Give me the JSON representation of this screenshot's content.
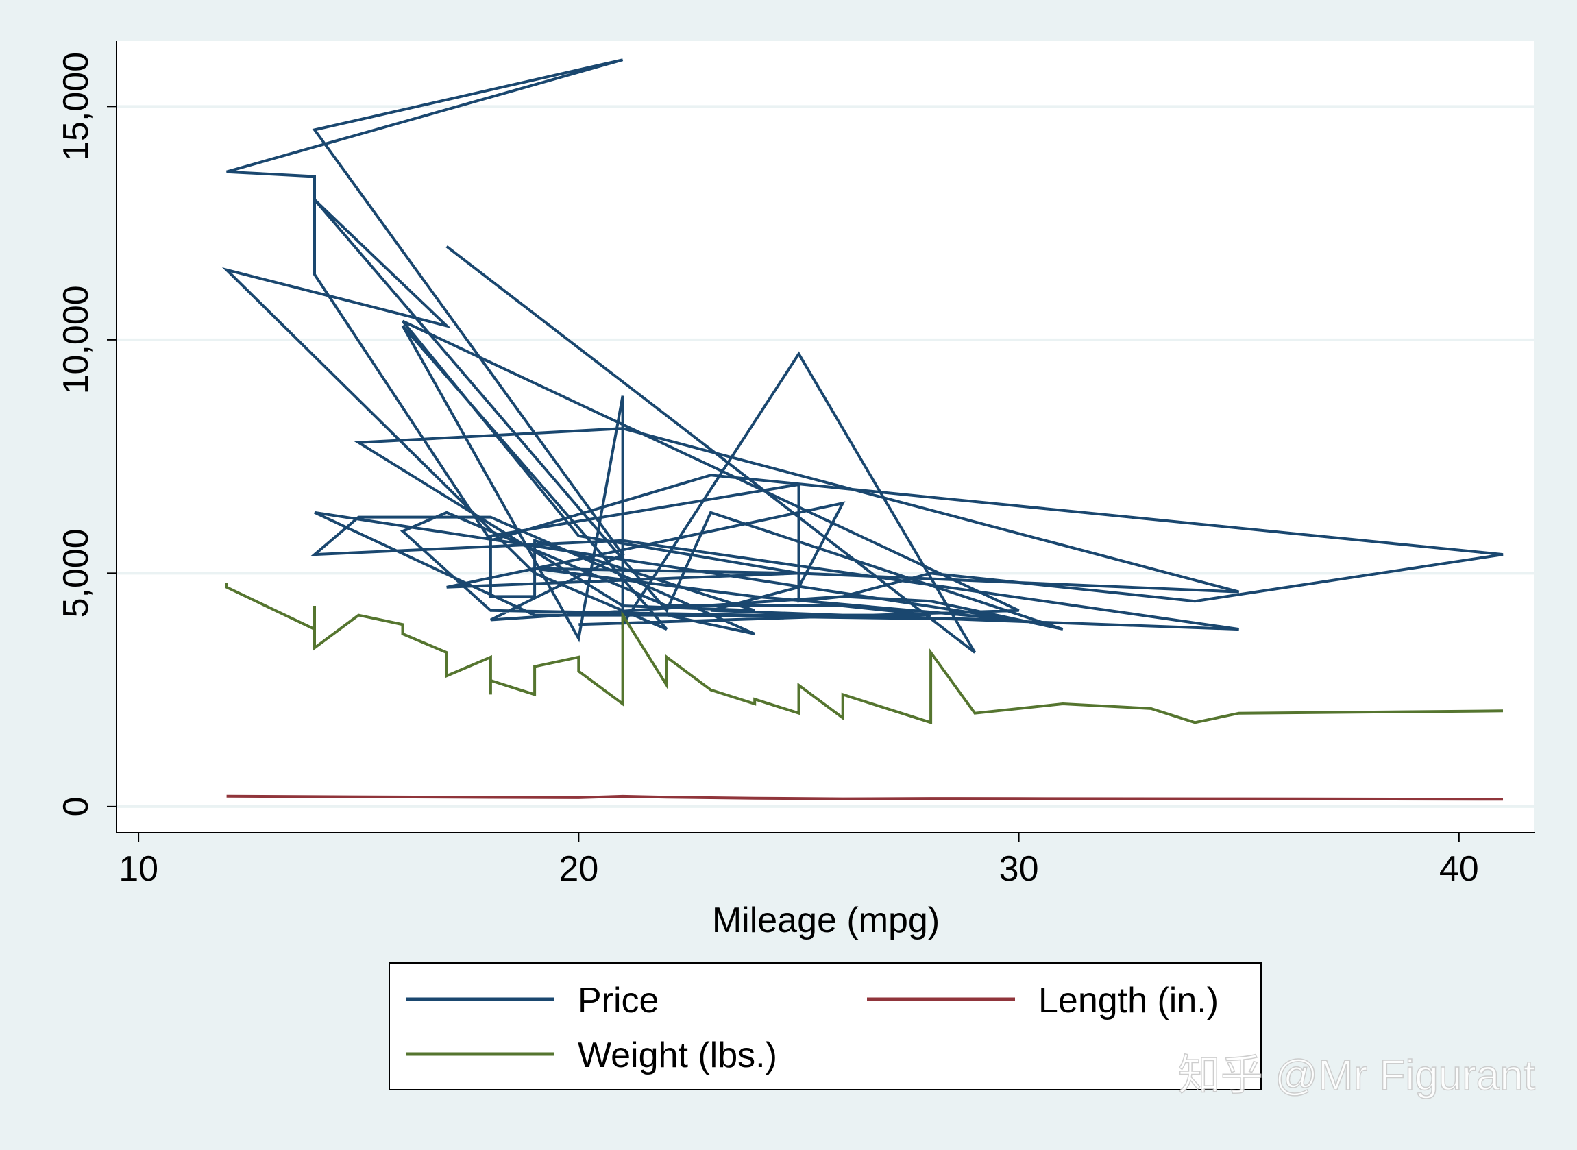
{
  "chart_data": {
    "type": "line",
    "title": "",
    "xlabel": "Mileage (mpg)",
    "ylabel": "",
    "xlim": [
      9.5,
      41.7
    ],
    "ylim": [
      -560,
      16400
    ],
    "x_ticks": [
      10,
      20,
      30,
      40
    ],
    "x_tick_labels": [
      "10",
      "20",
      "30",
      "40"
    ],
    "y_ticks": [
      0,
      5000,
      10000,
      15000
    ],
    "y_tick_labels": [
      "0",
      "5,000",
      "10,000",
      "15,000"
    ],
    "grid": "horizontal",
    "legend": {
      "placement": "bottom",
      "entries": [
        {
          "label": "Price",
          "color": "#1a476f"
        },
        {
          "label": "Length (in.)",
          "color": "#90353b"
        },
        {
          "label": "Weight (lbs.)",
          "color": "#55752f"
        }
      ]
    },
    "watermark": "知乎 @Mr Figurant",
    "series": [
      {
        "name": "Price",
        "color": "#1a476f",
        "points": [
          [
            17,
            12000
          ],
          [
            29,
            3300
          ],
          [
            25,
            9700
          ],
          [
            21,
            3900
          ],
          [
            21,
            8800
          ],
          [
            20,
            3600
          ],
          [
            16,
            10300
          ],
          [
            22,
            3800
          ],
          [
            19,
            5000
          ],
          [
            12,
            11500
          ],
          [
            17,
            10300
          ],
          [
            14,
            13000
          ],
          [
            22,
            4200
          ],
          [
            23,
            6300
          ],
          [
            31,
            3800
          ],
          [
            28,
            4400
          ],
          [
            26,
            4500
          ],
          [
            18,
            4000
          ],
          [
            21,
            5400
          ],
          [
            14,
            14500
          ],
          [
            21,
            16000
          ],
          [
            12,
            13600
          ],
          [
            14,
            13500
          ],
          [
            14,
            11400
          ],
          [
            18,
            5700
          ],
          [
            23,
            7100
          ],
          [
            41,
            5400
          ],
          [
            34,
            4400
          ],
          [
            28,
            5000
          ],
          [
            26,
            4500
          ],
          [
            25,
            4400
          ],
          [
            25,
            6900
          ],
          [
            18,
            5800
          ],
          [
            18,
            4500
          ],
          [
            19,
            4500
          ],
          [
            19,
            5700
          ],
          [
            24,
            4200
          ],
          [
            21,
            4300
          ],
          [
            15,
            7800
          ],
          [
            21,
            8100
          ],
          [
            35,
            4600
          ],
          [
            25,
            5000
          ],
          [
            19,
            5100
          ],
          [
            24,
            4500
          ],
          [
            30,
            4000
          ],
          [
            18,
            4200
          ],
          [
            16,
            5900
          ],
          [
            17,
            6300
          ],
          [
            22,
            4300
          ],
          [
            26,
            4300
          ],
          [
            28,
            4100
          ],
          [
            19,
            4100
          ],
          [
            14,
            6300
          ],
          [
            30,
            4000
          ],
          [
            22,
            4100
          ],
          [
            24,
            3700
          ],
          [
            18,
            6200
          ],
          [
            15,
            6200
          ],
          [
            14,
            5400
          ],
          [
            21,
            5700
          ],
          [
            35,
            3800
          ],
          [
            23,
            4200
          ],
          [
            25,
            4700
          ],
          [
            26,
            6500
          ],
          [
            17,
            4700
          ],
          [
            25,
            5000
          ],
          [
            20,
            5800
          ],
          [
            16,
            10400
          ],
          [
            30,
            4200
          ],
          [
            20,
            3900
          ]
        ]
      },
      {
        "name": "Weight (lbs.)",
        "color": "#55752f",
        "points": [
          [
            12,
            4800
          ],
          [
            12,
            4700
          ],
          [
            14,
            3800
          ],
          [
            14,
            4300
          ],
          [
            14,
            3400
          ],
          [
            15,
            4100
          ],
          [
            16,
            3900
          ],
          [
            16,
            3700
          ],
          [
            17,
            3300
          ],
          [
            17,
            2800
          ],
          [
            18,
            3200
          ],
          [
            18,
            2500
          ],
          [
            18,
            2400
          ],
          [
            18,
            2700
          ],
          [
            19,
            2400
          ],
          [
            19,
            2900
          ],
          [
            19,
            3000
          ],
          [
            20,
            3200
          ],
          [
            20,
            2900
          ],
          [
            21,
            2200
          ],
          [
            21,
            2600
          ],
          [
            21,
            4100
          ],
          [
            22,
            2600
          ],
          [
            22,
            3200
          ],
          [
            23,
            2500
          ],
          [
            24,
            2200
          ],
          [
            24,
            2300
          ],
          [
            25,
            2000
          ],
          [
            25,
            2600
          ],
          [
            26,
            1900
          ],
          [
            26,
            2400
          ],
          [
            28,
            1800
          ],
          [
            28,
            2400
          ],
          [
            28,
            3300
          ],
          [
            29,
            2000
          ],
          [
            30,
            2100
          ],
          [
            31,
            2200
          ],
          [
            33,
            2100
          ],
          [
            34,
            1800
          ],
          [
            35,
            2000
          ],
          [
            41,
            2050
          ]
        ]
      },
      {
        "name": "Length (in.)",
        "color": "#90353b",
        "points": [
          [
            12,
            222
          ],
          [
            14,
            212
          ],
          [
            18,
            196
          ],
          [
            20,
            190
          ],
          [
            21,
            220
          ],
          [
            22,
            199
          ],
          [
            24,
            179
          ],
          [
            26,
            165
          ],
          [
            28,
            172
          ],
          [
            30,
            170
          ],
          [
            35,
            165
          ],
          [
            41,
            155
          ]
        ]
      }
    ]
  }
}
